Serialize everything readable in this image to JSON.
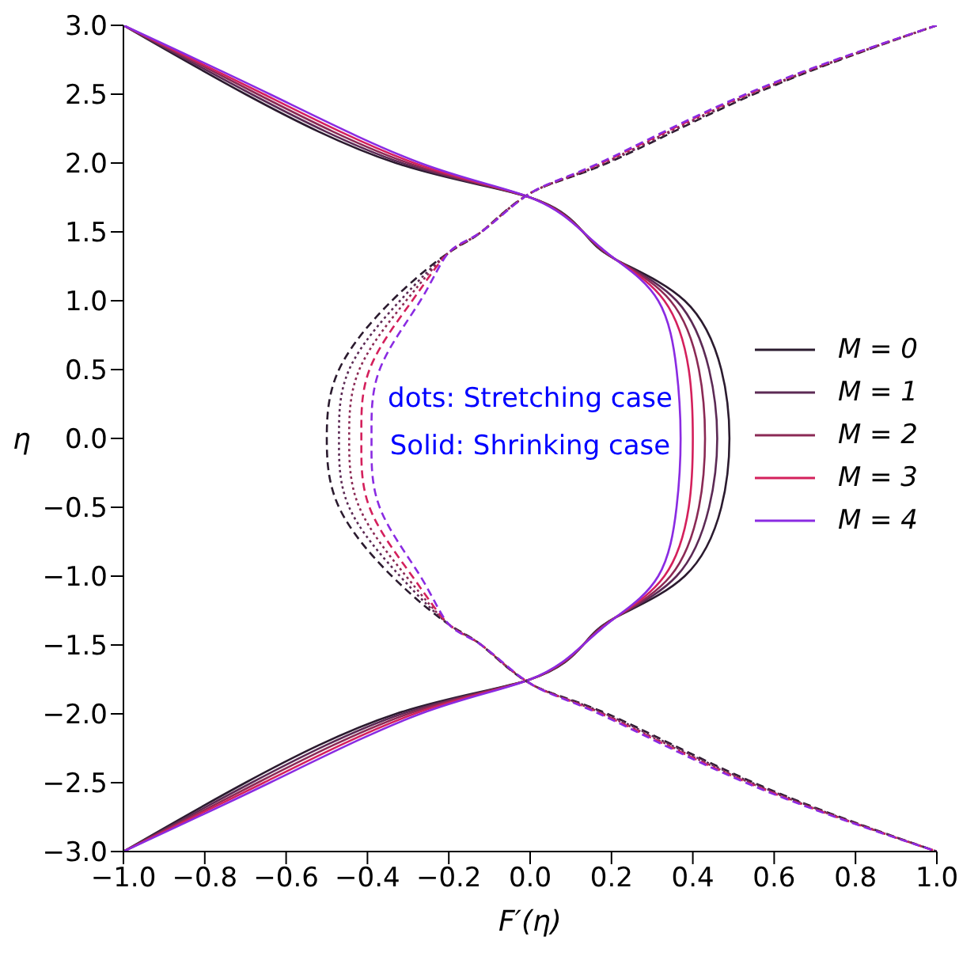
{
  "chart_data": {
    "type": "line",
    "xlabel": "F′(η)",
    "ylabel": "η",
    "annotations": [
      "dots: Stretching case",
      "Solid: Shrinking case"
    ],
    "xlim": [
      -1,
      1
    ],
    "ylim": [
      -3,
      3
    ],
    "xticks": [
      {
        "value": -1,
        "label": "−1.0"
      },
      {
        "value": -0.8,
        "label": "−0.8"
      },
      {
        "value": -0.6,
        "label": "−0.6"
      },
      {
        "value": -0.4,
        "label": "−0.4"
      },
      {
        "value": -0.2,
        "label": "−0.2"
      },
      {
        "value": 0,
        "label": "0.0"
      },
      {
        "value": 0.2,
        "label": "0.2"
      },
      {
        "value": 0.4,
        "label": "0.4"
      },
      {
        "value": 0.6,
        "label": "0.6"
      },
      {
        "value": 0.8,
        "label": "0.8"
      },
      {
        "value": 1,
        "label": "1.0"
      }
    ],
    "yticks": [
      {
        "value": -3,
        "label": "−3.0"
      },
      {
        "value": -2.5,
        "label": "−2.5"
      },
      {
        "value": -2,
        "label": "−2.0"
      },
      {
        "value": -1.5,
        "label": "−1.5"
      },
      {
        "value": -1,
        "label": "−1.0"
      },
      {
        "value": -0.5,
        "label": "−0.5"
      },
      {
        "value": 0,
        "label": "0.0"
      },
      {
        "value": 0.5,
        "label": "0.5"
      },
      {
        "value": 1,
        "label": "1.0"
      },
      {
        "value": 1.5,
        "label": "1.5"
      },
      {
        "value": 2,
        "label": "2.0"
      },
      {
        "value": 2.5,
        "label": "2.5"
      },
      {
        "value": 3,
        "label": "3.0"
      }
    ],
    "grid": false,
    "legend": "right",
    "marker": "none",
    "series": [
      {
        "name": "M = 0",
        "color": "#2b1b2f",
        "line_style": "solid",
        "x": [
          -1,
          -0.7,
          -0.33,
          0,
          0.13,
          0.21,
          0.38,
          0.47,
          0.49,
          0.47,
          0.38,
          0.21,
          0.13,
          0,
          -0.33,
          -0.7,
          -1
        ],
        "values": [
          3,
          2.5,
          2,
          1.75,
          1.5,
          1.3,
          1,
          0.5,
          0,
          -0.5,
          -1,
          -1.3,
          -1.5,
          -1.75,
          -2,
          -2.5,
          -3
        ]
      },
      {
        "name": "M = 1",
        "color": "#5c2a55",
        "line_style": "solid",
        "x": [
          -1,
          -0.685,
          -0.315,
          0,
          0.13,
          0.21,
          0.36,
          0.44,
          0.46,
          0.44,
          0.36,
          0.21,
          0.13,
          0,
          -0.315,
          -0.685,
          -1
        ],
        "values": [
          3,
          2.5,
          2,
          1.75,
          1.5,
          1.3,
          1,
          0.5,
          0,
          -0.5,
          -1,
          -1.3,
          -1.5,
          -1.75,
          -2,
          -2.5,
          -3
        ]
      },
      {
        "name": "M = 2",
        "color": "#8b2a55",
        "line_style": "solid",
        "x": [
          -1,
          -0.67,
          -0.3,
          0,
          0.13,
          0.21,
          0.345,
          0.415,
          0.43,
          0.415,
          0.345,
          0.21,
          0.13,
          0,
          -0.3,
          -0.67,
          -1
        ],
        "values": [
          3,
          2.5,
          2,
          1.75,
          1.5,
          1.3,
          1,
          0.5,
          0,
          -0.5,
          -1,
          -1.3,
          -1.5,
          -1.75,
          -2,
          -2.5,
          -3
        ]
      },
      {
        "name": "M = 3",
        "color": "#d4205c",
        "line_style": "solid",
        "x": [
          -1,
          -0.655,
          -0.285,
          0,
          0.13,
          0.21,
          0.33,
          0.39,
          0.4,
          0.39,
          0.33,
          0.21,
          0.13,
          0,
          -0.285,
          -0.655,
          -1
        ],
        "values": [
          3,
          2.5,
          2,
          1.75,
          1.5,
          1.3,
          1,
          0.5,
          0,
          -0.5,
          -1,
          -1.3,
          -1.5,
          -1.75,
          -2,
          -2.5,
          -3
        ]
      },
      {
        "name": "M = 4",
        "color": "#8a2be2",
        "line_style": "solid",
        "x": [
          -1,
          -0.64,
          -0.27,
          0,
          0.13,
          0.21,
          0.315,
          0.36,
          0.37,
          0.36,
          0.315,
          0.21,
          0.13,
          0,
          -0.27,
          -0.64,
          -1
        ],
        "values": [
          3,
          2.5,
          2,
          1.75,
          1.5,
          1.3,
          1,
          0.5,
          0,
          -0.5,
          -1,
          -1.3,
          -1.5,
          -1.75,
          -2,
          -2.5,
          -3
        ]
      },
      {
        "color": "#2b1b2f",
        "line_style": "dashed",
        "x": [
          1,
          0.55,
          0.19,
          0,
          -0.12,
          -0.2,
          -0.34,
          -0.47,
          -0.5,
          -0.47,
          -0.34,
          -0.2,
          -0.12,
          0,
          0.19,
          0.55,
          1
        ],
        "values": [
          3,
          2.5,
          2,
          1.78,
          1.5,
          1.35,
          1,
          0.5,
          0,
          -0.5,
          -1,
          -1.35,
          -1.5,
          -1.78,
          -2,
          -2.5,
          -3
        ]
      },
      {
        "color": "#5c2a55",
        "line_style": "dotted",
        "x": [
          1,
          0.545,
          0.185,
          0,
          -0.12,
          -0.2,
          -0.32,
          -0.445,
          -0.47,
          -0.445,
          -0.32,
          -0.2,
          -0.12,
          0,
          0.185,
          0.545,
          1
        ],
        "values": [
          3,
          2.5,
          2,
          1.78,
          1.5,
          1.35,
          1,
          0.5,
          0,
          -0.5,
          -1,
          -1.35,
          -1.5,
          -1.78,
          -2,
          -2.5,
          -3
        ]
      },
      {
        "color": "#8b2a55",
        "line_style": "dotted",
        "x": [
          1,
          0.54,
          0.18,
          0,
          -0.12,
          -0.2,
          -0.305,
          -0.42,
          -0.445,
          -0.42,
          -0.305,
          -0.2,
          -0.12,
          0,
          0.18,
          0.54,
          1
        ],
        "values": [
          3,
          2.5,
          2,
          1.78,
          1.5,
          1.35,
          1,
          0.5,
          0,
          -0.5,
          -1,
          -1.35,
          -1.5,
          -1.78,
          -2,
          -2.5,
          -3
        ]
      },
      {
        "color": "#d4205c",
        "line_style": "dashed",
        "x": [
          1,
          0.535,
          0.175,
          0,
          -0.12,
          -0.2,
          -0.29,
          -0.395,
          -0.415,
          -0.395,
          -0.29,
          -0.2,
          -0.12,
          0,
          0.175,
          0.535,
          1
        ],
        "values": [
          3,
          2.5,
          2,
          1.78,
          1.5,
          1.35,
          1,
          0.5,
          0,
          -0.5,
          -1,
          -1.35,
          -1.5,
          -1.78,
          -2,
          -2.5,
          -3
        ]
      },
      {
        "color": "#8a2be2",
        "line_style": "dashed",
        "x": [
          1,
          0.53,
          0.17,
          0,
          -0.12,
          -0.2,
          -0.27,
          -0.37,
          -0.39,
          -0.37,
          -0.27,
          -0.2,
          -0.12,
          0,
          0.17,
          0.53,
          1
        ],
        "values": [
          3,
          2.5,
          2,
          1.78,
          1.5,
          1.35,
          1,
          0.5,
          0,
          -0.5,
          -1,
          -1.35,
          -1.5,
          -1.78,
          -2,
          -2.5,
          -3
        ]
      }
    ]
  }
}
